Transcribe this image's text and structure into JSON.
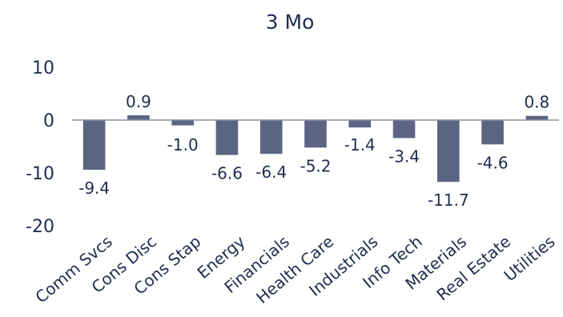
{
  "chart_data": {
    "type": "bar",
    "title": "3 Mo",
    "categories": [
      "Comm Svcs",
      "Cons Disc",
      "Cons Stap",
      "Energy",
      "Financials",
      "Health Care",
      "Industrials",
      "Info Tech",
      "Materials",
      "Real Estate",
      "Utilities"
    ],
    "values": [
      -9.4,
      0.9,
      -1.0,
      -6.6,
      -6.4,
      -5.2,
      -1.4,
      -3.4,
      -11.7,
      -4.6,
      0.8
    ],
    "data_labels": [
      "-9.4",
      "0.9",
      "-1.0",
      "-6.6",
      "-6.4",
      "-5.2",
      "-1.4",
      "-3.4",
      "-11.7",
      "-4.6",
      "0.8"
    ],
    "yticks": [
      "10",
      "0",
      "-10",
      "-20"
    ],
    "ylim": [
      -20,
      10
    ],
    "xlabel": "",
    "ylabel": "",
    "grid": false,
    "legend": "none",
    "colors": {
      "bar": "#5b6583",
      "axis": "#1f2d4f",
      "text": "#1f2d4f"
    }
  }
}
